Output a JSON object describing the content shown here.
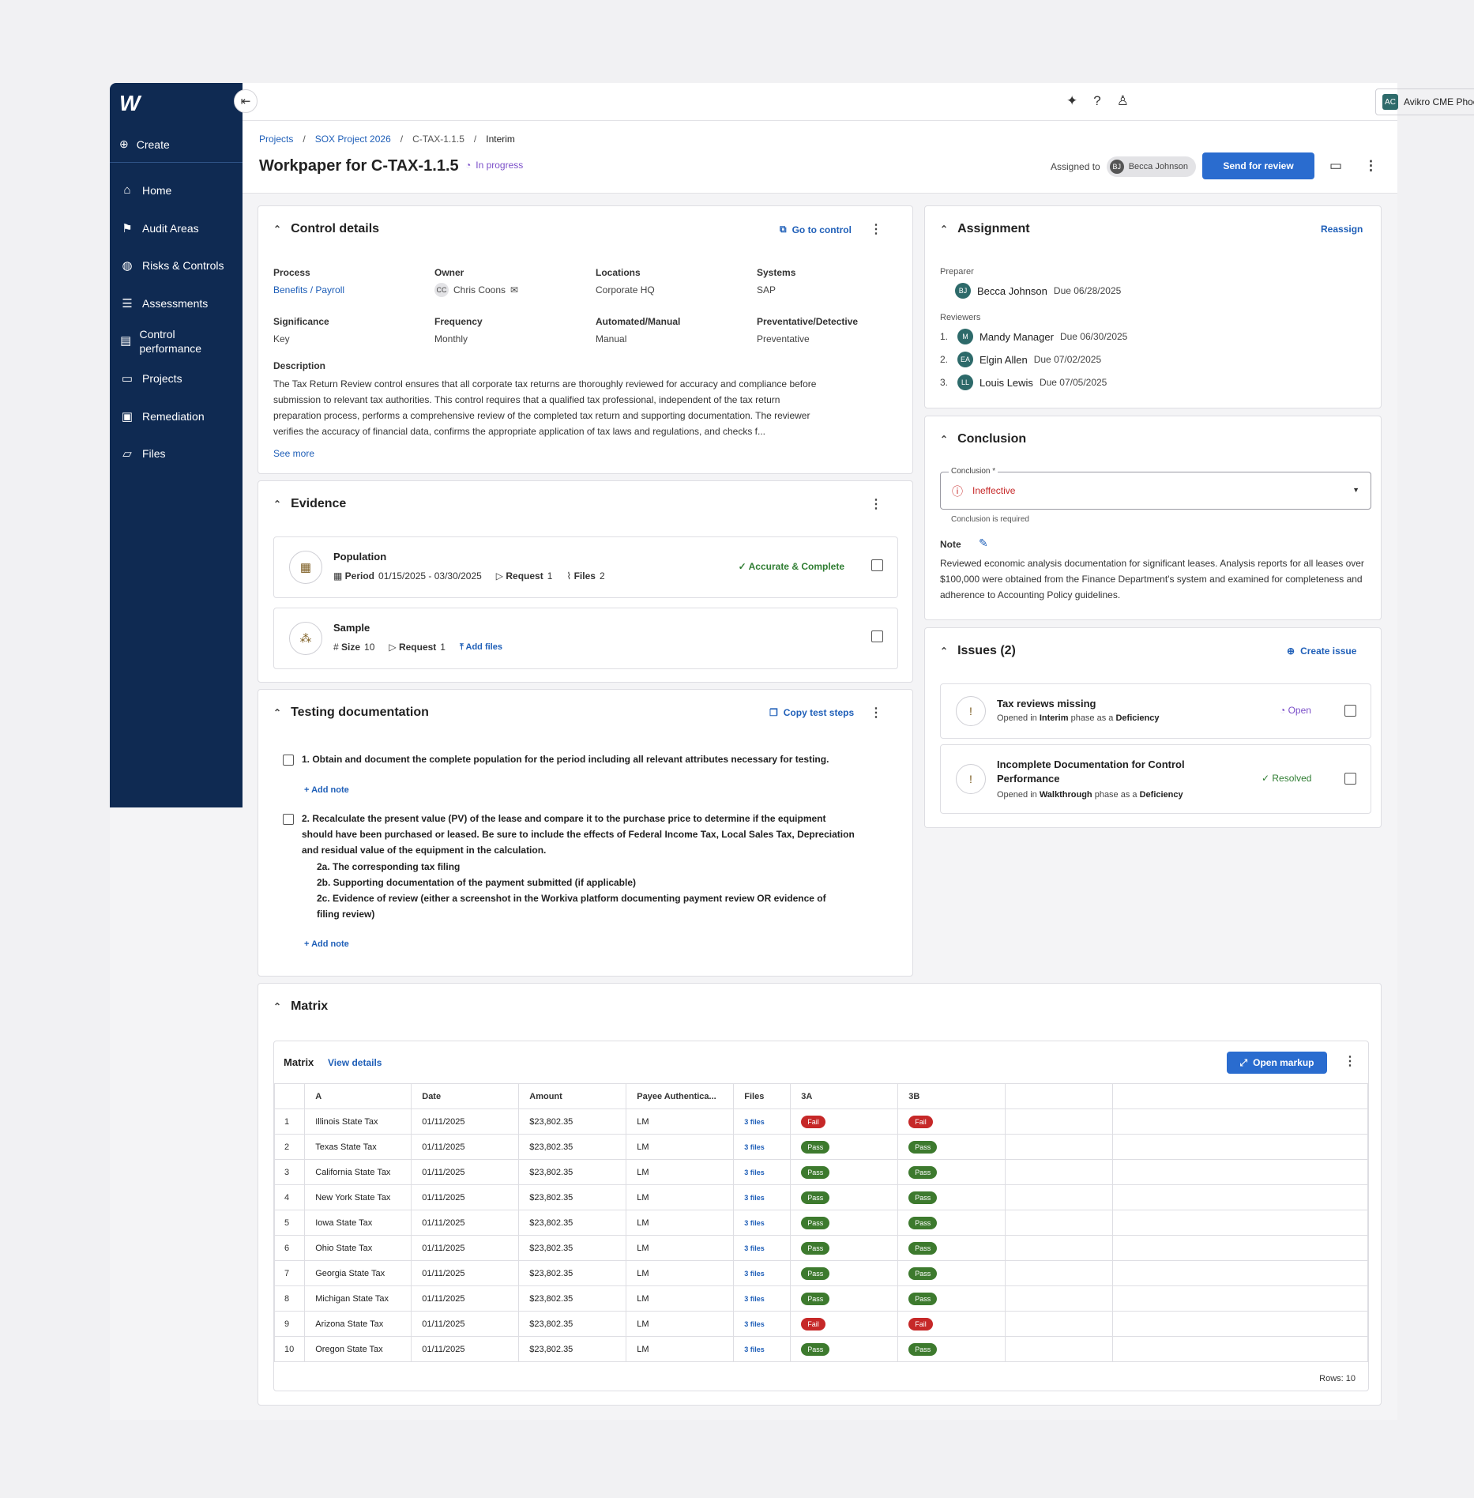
{
  "sidebar": {
    "logo": "W",
    "create": "Create",
    "items": [
      {
        "label": "Home",
        "icon": "home-icon"
      },
      {
        "label": "Audit Areas",
        "icon": "flag-icon"
      },
      {
        "label": "Risks & Controls",
        "icon": "globe-icon"
      },
      {
        "label": "Assessments",
        "icon": "list-icon"
      },
      {
        "label": "Control performance",
        "icon": "chart-doc-icon"
      },
      {
        "label": "Projects",
        "icon": "archive-icon"
      },
      {
        "label": "Remediation",
        "icon": "alert-clipboard-icon"
      },
      {
        "label": "Files",
        "icon": "folder-icon"
      }
    ]
  },
  "topbar": {
    "org_initials": "AC",
    "org_name": "Avikro CME Phoenix"
  },
  "header": {
    "crumbs": [
      "Projects",
      "SOX Project 2026",
      "C-TAX-1.1.5",
      "Interim"
    ],
    "title": "Workpaper for C-TAX-1.1.5",
    "status": "In progress",
    "assigned_label": "Assigned to",
    "assignee_initials": "BJ",
    "assignee": "Becca Johnson",
    "send_label": "Send for review"
  },
  "control": {
    "title": "Control details",
    "goto": "Go to control",
    "process_l": "Process",
    "process": "Benefits / Payroll",
    "owner_l": "Owner",
    "owner_initials": "CC",
    "owner": "Chris Coons",
    "locations_l": "Locations",
    "locations": "Corporate HQ",
    "systems_l": "Systems",
    "systems": "SAP",
    "significance_l": "Significance",
    "significance": "Key",
    "frequency_l": "Frequency",
    "frequency": "Monthly",
    "automated_l": "Automated/Manual",
    "automated": "Manual",
    "preventative_l": "Preventative/Detective",
    "preventative": "Preventative",
    "description_l": "Description",
    "description": "The Tax Return Review control ensures that all corporate tax returns are thoroughly reviewed for accuracy and compliance before submission to relevant tax authorities. This control requires that a qualified tax professional, independent of the tax return preparation process, performs a comprehensive review of the completed tax return and supporting documentation. The reviewer verifies the accuracy of financial data, confirms the appropriate application of tax laws and regulations, and checks f...",
    "see_more": "See more"
  },
  "evidence": {
    "title": "Evidence",
    "population": {
      "title": "Population",
      "period_l": "Period",
      "period": "01/15/2025 - 03/30/2025",
      "request_l": "Request",
      "request": "1",
      "files_l": "Files",
      "files": "2",
      "status": "Accurate & Complete"
    },
    "sample": {
      "title": "Sample",
      "size_l": "Size",
      "size": "10",
      "request_l": "Request",
      "request": "1",
      "add_files": "Add files"
    }
  },
  "testing": {
    "title": "Testing documentation",
    "copy": "Copy test steps",
    "step1": "1. Obtain and document the complete population for the period including all relevant attributes necessary for testing.",
    "step2": "2. Recalculate the present value (PV) of the lease and compare it to the purchase price to determine if the equipment should have been purchased or leased. Be sure to include the effects of Federal Income Tax, Local Sales Tax, Depreciation and residual value of the equipment in the calculation.",
    "step2a": "2a. The corresponding tax filing",
    "step2b": "2b. Supporting documentation of the payment submitted (if applicable)",
    "step2c": "2c. Evidence of review (either a screenshot in the Workiva platform documenting payment review OR evidence of filing review)",
    "add_note": "Add note"
  },
  "assignment": {
    "title": "Assignment",
    "reassign": "Reassign",
    "preparer_l": "Preparer",
    "preparer": {
      "initials": "BJ",
      "name": "Becca Johnson",
      "due": "Due 06/28/2025"
    },
    "reviewers_l": "Reviewers",
    "reviewers": [
      {
        "num": "1.",
        "initials": "M",
        "name": "Mandy Manager",
        "due": "Due 06/30/2025"
      },
      {
        "num": "2.",
        "initials": "EA",
        "name": "Elgin Allen",
        "due": "Due 07/02/2025"
      },
      {
        "num": "3.",
        "initials": "LL",
        "name": "Louis Lewis",
        "due": "Due 07/05/2025"
      }
    ]
  },
  "conclusion": {
    "title": "Conclusion",
    "field_l": "Conclusion *",
    "value": "Ineffective",
    "helper": "Conclusion is required",
    "note_l": "Note",
    "note": "Reviewed economic analysis documentation for significant leases. Analysis reports for all leases over $100,000 were obtained from the Finance Department's system and examined for completeness and adherence to Accounting Policy guidelines."
  },
  "issues": {
    "title": "Issues (2)",
    "create": "Create issue",
    "items": [
      {
        "title": "Tax reviews missing",
        "phase": "Interim",
        "type": "Deficiency",
        "status": "Open"
      },
      {
        "title": "Incomplete Documentation for Control Performance",
        "phase": "Walkthrough",
        "type": "Deficiency",
        "status": "Resolved"
      }
    ],
    "opened_in": "Opened in",
    "phase_as": "phase as a"
  },
  "matrix": {
    "title": "Matrix",
    "sub_title": "Matrix",
    "view": "View details",
    "open": "Open markup",
    "columns": [
      "",
      "A",
      "Date",
      "Amount",
      "Payee Authentica...",
      "Files",
      "3A",
      "3B",
      "",
      ""
    ],
    "rows": [
      [
        "1",
        "Illinois State Tax",
        "01/11/2025",
        "$23,802.35",
        "LM",
        "3 files",
        "Fail",
        "Fail"
      ],
      [
        "2",
        "Texas State Tax",
        "01/11/2025",
        "$23,802.35",
        "LM",
        "3 files",
        "Pass",
        "Pass"
      ],
      [
        "3",
        "California State Tax",
        "01/11/2025",
        "$23,802.35",
        "LM",
        "3 files",
        "Pass",
        "Pass"
      ],
      [
        "4",
        "New York State Tax",
        "01/11/2025",
        "$23,802.35",
        "LM",
        "3 files",
        "Pass",
        "Pass"
      ],
      [
        "5",
        "Iowa State Tax",
        "01/11/2025",
        "$23,802.35",
        "LM",
        "3 files",
        "Pass",
        "Pass"
      ],
      [
        "6",
        "Ohio State Tax",
        "01/11/2025",
        "$23,802.35",
        "LM",
        "3 files",
        "Pass",
        "Pass"
      ],
      [
        "7",
        "Georgia State Tax",
        "01/11/2025",
        "$23,802.35",
        "LM",
        "3 files",
        "Pass",
        "Pass"
      ],
      [
        "8",
        "Michigan State Tax",
        "01/11/2025",
        "$23,802.35",
        "LM",
        "3 files",
        "Pass",
        "Pass"
      ],
      [
        "9",
        "Arizona State Tax",
        "01/11/2025",
        "$23,802.35",
        "LM",
        "3 files",
        "Fail",
        "Fail"
      ],
      [
        "10",
        "Oregon State Tax",
        "01/11/2025",
        "$23,802.35",
        "LM",
        "3 files",
        "Pass",
        "Pass"
      ]
    ],
    "rows_count": "Rows: 10"
  }
}
